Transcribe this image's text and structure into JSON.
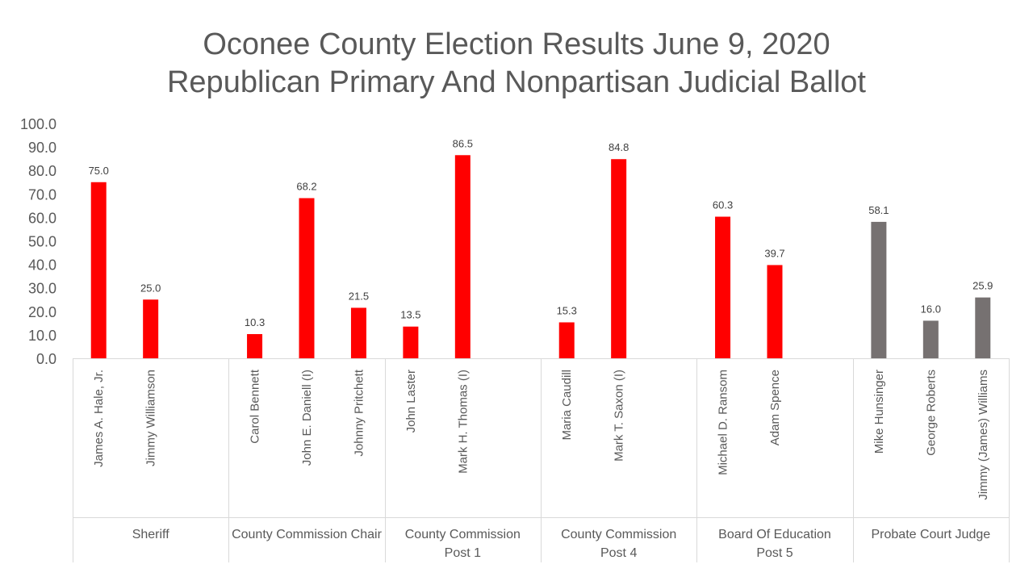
{
  "chart_data": {
    "type": "bar",
    "title_line1": "Oconee County Election Results June 9, 2020",
    "title_line2": "Republican Primary And Nonpartisan Judicial Ballot",
    "xlabel": "",
    "ylabel": "",
    "ylim": [
      0,
      100
    ],
    "yticks": [
      "0.0",
      "10.0",
      "20.0",
      "30.0",
      "40.0",
      "50.0",
      "60.0",
      "70.0",
      "80.0",
      "90.0",
      "100.0"
    ],
    "grid": false,
    "legend": "none",
    "colors": {
      "republican": "#ff0000",
      "nonpartisan": "#767171"
    },
    "groups": [
      {
        "label_lines": [
          "Sheriff"
        ],
        "color_key": "republican",
        "slots": 3,
        "candidates": [
          {
            "name": "James A. Hale, Jr.",
            "value": 75.0
          },
          {
            "name": "Jimmy Williamson",
            "value": 25.0
          }
        ]
      },
      {
        "label_lines": [
          "County Commission Chair"
        ],
        "color_key": "republican",
        "slots": 3,
        "candidates": [
          {
            "name": "Carol Bennett",
            "value": 10.3
          },
          {
            "name": "John E. Daniell (I)",
            "value": 68.2
          },
          {
            "name": "Johnny Pritchett",
            "value": 21.5
          }
        ]
      },
      {
        "label_lines": [
          "County Commission",
          "Post 1"
        ],
        "color_key": "republican",
        "slots": 3,
        "candidates": [
          {
            "name": "John Laster",
            "value": 13.5
          },
          {
            "name": "Mark H. Thomas (I)",
            "value": 86.5
          }
        ]
      },
      {
        "label_lines": [
          "County Commission",
          "Post 4"
        ],
        "color_key": "republican",
        "slots": 3,
        "candidates": [
          {
            "name": "Maria Caudill",
            "value": 15.3
          },
          {
            "name": "Mark T. Saxon (I)",
            "value": 84.8
          }
        ]
      },
      {
        "label_lines": [
          "Board Of Education",
          "Post 5"
        ],
        "color_key": "republican",
        "slots": 3,
        "candidates": [
          {
            "name": "Michael D. Ransom",
            "value": 60.3
          },
          {
            "name": "Adam Spence",
            "value": 39.7
          }
        ]
      },
      {
        "label_lines": [
          "Probate Court Judge"
        ],
        "color_key": "nonpartisan",
        "slots": 3,
        "candidates": [
          {
            "name": "Mike Hunsinger",
            "value": 58.1
          },
          {
            "name": "George Roberts",
            "value": 16.0
          },
          {
            "name": "Jimmy (James) Williams",
            "value": 25.9
          }
        ]
      }
    ]
  }
}
